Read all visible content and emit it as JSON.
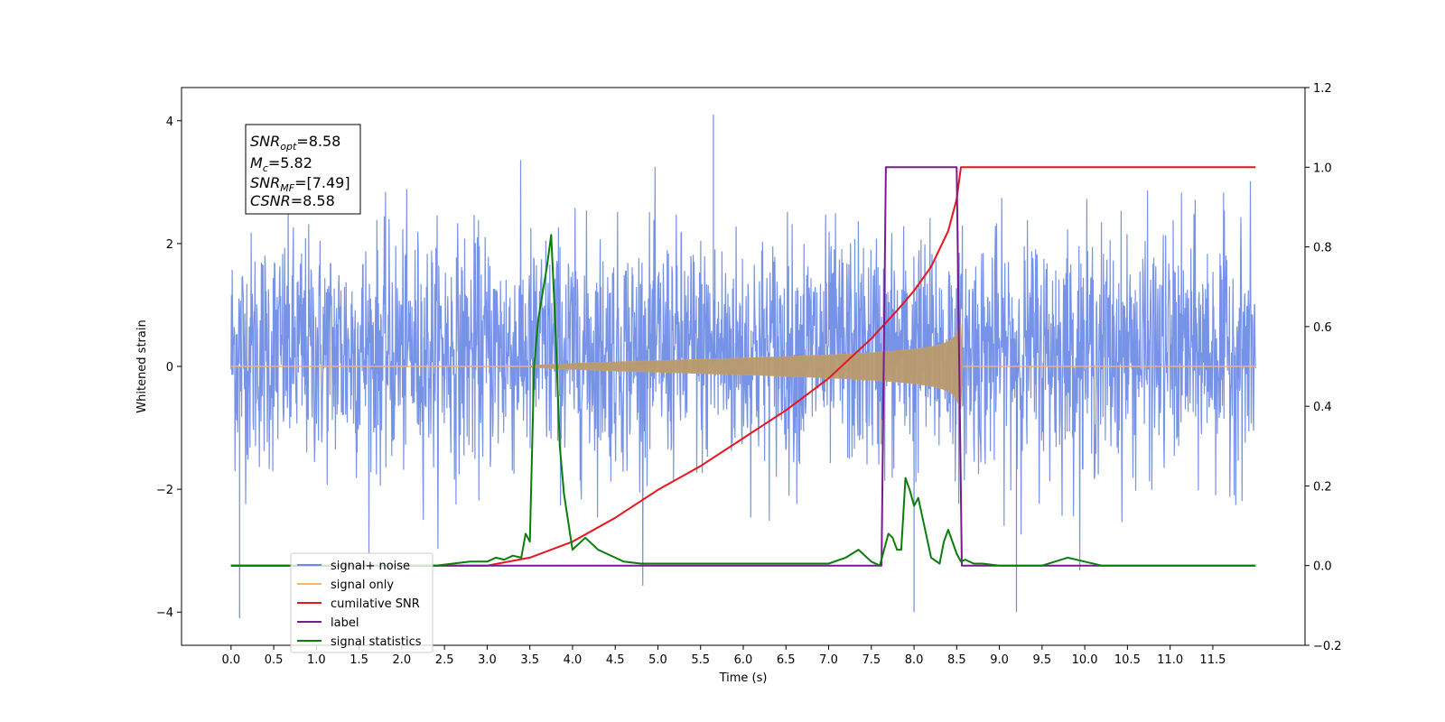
{
  "chart_data": {
    "type": "line",
    "title": "",
    "xlabel": "Time (s)",
    "ylabel": "Whitened strain",
    "y2label": "",
    "xlim": [
      -0.58,
      12.58
    ],
    "ylim": [
      -4.54,
      4.54
    ],
    "y2lim": [
      -0.2,
      1.2
    ],
    "xticks": [
      "0.0",
      "0.5",
      "1.0",
      "1.5",
      "2.0",
      "2.5",
      "3.0",
      "3.5",
      "4.0",
      "4.5",
      "5.0",
      "5.5",
      "6.0",
      "6.5",
      "7.0",
      "7.5",
      "8.0",
      "8.5",
      "9.0",
      "9.5",
      "10.0",
      "10.5",
      "11.0",
      "11.5"
    ],
    "yticks": [
      "−4",
      "−2",
      "0",
      "2",
      "4"
    ],
    "y2ticks": [
      "−0.2",
      "0.0",
      "0.2",
      "0.4",
      "0.6",
      "0.8",
      "1.0",
      "1.2"
    ],
    "grid": false,
    "legend_position": "lower-left",
    "annotation": {
      "lines": [
        {
          "base": "SNR",
          "sub": "opt",
          "value": "=8.58"
        },
        {
          "base": "M",
          "sub": "c",
          "value": "=5.82"
        },
        {
          "base": "SNR",
          "sub": "MF",
          "value": "=[7.49]"
        },
        {
          "base": "CSNR",
          "sub": "",
          "value": "=8.58"
        }
      ]
    },
    "series": [
      {
        "name": "signal+ noise",
        "color": "#6b8ae6",
        "axis": "left",
        "kind": "noise",
        "t_range": [
          0,
          12
        ],
        "amplitude_envelope": [
          -4.1,
          4.1
        ],
        "typical_range": [
          -2.6,
          3.4
        ],
        "extremes": [
          {
            "t": 0.1,
            "y": -4.1
          },
          {
            "t": 5.65,
            "y": 4.1
          },
          {
            "t": 8.0,
            "y": -4.0
          },
          {
            "t": 9.2,
            "y": -4.0
          }
        ]
      },
      {
        "name": "signal only",
        "color": "#f5b866",
        "axis": "left",
        "kind": "chirp",
        "t_range": [
          0,
          12
        ],
        "chirp_start": 3.5,
        "merger_t": 8.55,
        "peak_amplitude": 0.9
      },
      {
        "name": "cumilative SNR",
        "color": "#e8141e",
        "axis": "right",
        "x": [
          0,
          3.0,
          3.5,
          4.0,
          4.5,
          5.0,
          5.5,
          6.0,
          6.5,
          7.0,
          7.5,
          7.8,
          8.0,
          8.2,
          8.4,
          8.5,
          8.55,
          8.6,
          12.0
        ],
        "y": [
          0,
          0.0,
          0.02,
          0.06,
          0.12,
          0.19,
          0.25,
          0.32,
          0.39,
          0.47,
          0.57,
          0.64,
          0.69,
          0.75,
          0.84,
          0.92,
          1.0,
          1.0,
          1.0
        ]
      },
      {
        "name": "label",
        "color": "#7a1a8c",
        "axis": "right",
        "x": [
          0,
          7.62,
          7.67,
          8.5,
          8.56,
          12.0
        ],
        "y": [
          0,
          0,
          1.0,
          1.0,
          0,
          0
        ]
      },
      {
        "name": "signal statistics",
        "color": "#0b7d0b",
        "axis": "right",
        "x": [
          0,
          2.4,
          2.6,
          2.8,
          3.0,
          3.1,
          3.2,
          3.3,
          3.4,
          3.45,
          3.5,
          3.55,
          3.6,
          3.7,
          3.75,
          3.8,
          3.85,
          3.9,
          4.0,
          4.1,
          4.15,
          4.2,
          4.3,
          4.4,
          4.5,
          4.6,
          4.8,
          5.0,
          5.5,
          6.0,
          6.5,
          7.0,
          7.2,
          7.35,
          7.5,
          7.6,
          7.7,
          7.75,
          7.8,
          7.85,
          7.9,
          7.95,
          8.0,
          8.05,
          8.1,
          8.2,
          8.3,
          8.35,
          8.4,
          8.5,
          8.55,
          8.6,
          8.7,
          8.8,
          9.0,
          9.5,
          9.8,
          10.0,
          10.2,
          12.0
        ],
        "y": [
          0,
          0.0,
          0.005,
          0.01,
          0.01,
          0.02,
          0.015,
          0.025,
          0.02,
          0.08,
          0.06,
          0.5,
          0.62,
          0.75,
          0.83,
          0.6,
          0.3,
          0.18,
          0.04,
          0.06,
          0.07,
          0.06,
          0.04,
          0.03,
          0.02,
          0.01,
          0.005,
          0.005,
          0.005,
          0.005,
          0.005,
          0.005,
          0.02,
          0.04,
          0.01,
          0.0,
          0.08,
          0.07,
          0.04,
          0.04,
          0.22,
          0.19,
          0.15,
          0.17,
          0.12,
          0.02,
          0.005,
          0.06,
          0.09,
          0.03,
          0.01,
          0.015,
          0.005,
          0.005,
          0.0,
          0.0,
          0.02,
          0.01,
          0.0,
          0.0
        ]
      }
    ]
  }
}
